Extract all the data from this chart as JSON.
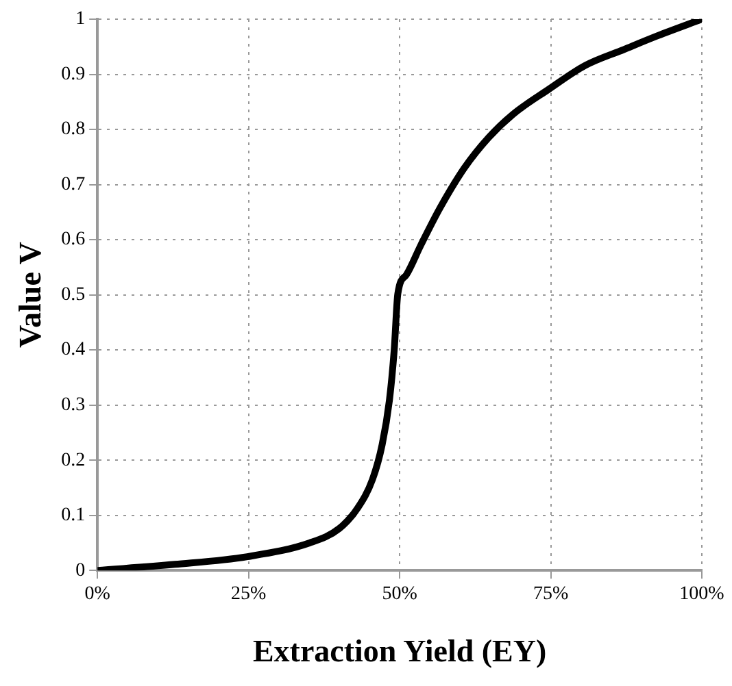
{
  "chart_data": {
    "type": "line",
    "xlabel": "Extraction Yield (EY)",
    "ylabel": "Value V",
    "series": [
      {
        "color": "#000000",
        "x": [
          0,
          12.8,
          24.8,
          35.1,
          40,
          43.1,
          45.5,
          47.1,
          48.3,
          49.1,
          49.7,
          51.1,
          53.5,
          56.7,
          60.7,
          64.7,
          68.7,
          74.7,
          80.7,
          87.1,
          92.7,
          100
        ],
        "values": [
          0,
          0.011,
          0.025,
          0.05,
          0.076,
          0.114,
          0.165,
          0.228,
          0.308,
          0.4,
          0.502,
          0.536,
          0.59,
          0.658,
          0.73,
          0.785,
          0.827,
          0.873,
          0.916,
          0.945,
          0.97,
          1
        ]
      }
    ],
    "xlim": [
      0,
      100
    ],
    "xticks": [
      {
        "value": 0,
        "label": "0%"
      },
      {
        "value": 25,
        "label": "25%"
      },
      {
        "value": 50,
        "label": "50%"
      },
      {
        "value": 75,
        "label": "75%"
      },
      {
        "value": 100,
        "label": "100%"
      }
    ],
    "ylim": [
      0,
      1
    ],
    "yticks": [
      0,
      0.1,
      0.2,
      0.3,
      0.4,
      0.5,
      0.6,
      0.7,
      0.8,
      0.9,
      1
    ],
    "grid": true,
    "legend": false,
    "marker": "none",
    "line_style": "solid"
  }
}
